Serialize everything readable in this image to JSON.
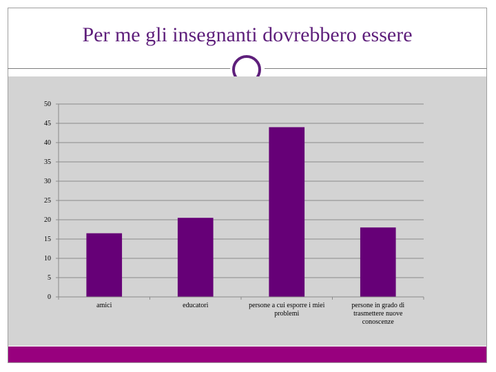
{
  "slide": {
    "title": "Per me gli insegnanti dovrebbero essere",
    "accent_color": "#5e1f7b",
    "bottom_bar_color": "#98007e"
  },
  "chart_data": {
    "type": "bar",
    "categories": [
      [
        "amici"
      ],
      [
        "educatori"
      ],
      [
        "persone a cui esporre i miei",
        "problemi"
      ],
      [
        "persone in grado di",
        "trasmettere nuove",
        "conoscenze"
      ]
    ],
    "values": [
      16.5,
      20.5,
      44,
      18
    ],
    "ylim": [
      0,
      50
    ],
    "yticks": [
      "0",
      "5",
      "10",
      "15",
      "20",
      "25",
      "30",
      "35",
      "40",
      "45",
      "50"
    ],
    "bar_color": "#660077",
    "grid": true,
    "legend": "none"
  }
}
